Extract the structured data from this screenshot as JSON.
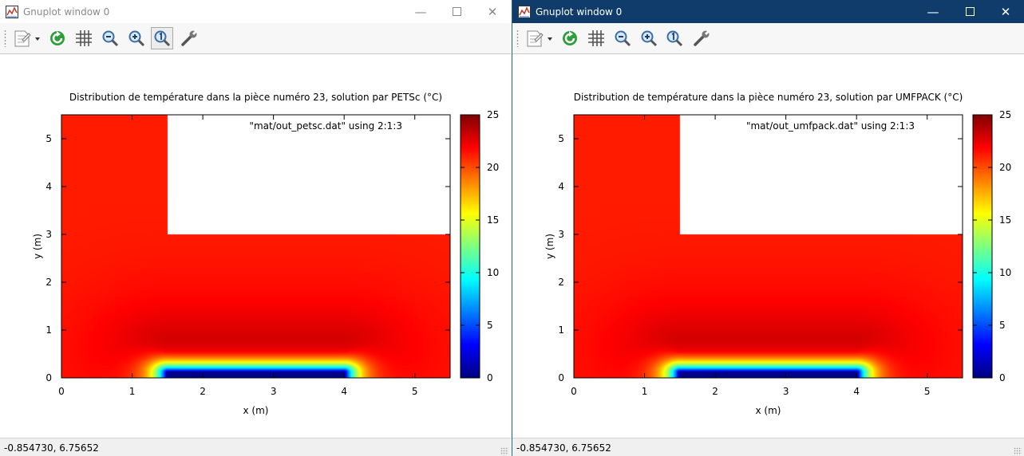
{
  "windows": [
    {
      "title": "Gnuplot window 0",
      "status": "-0.854730,  6.75652",
      "active": false,
      "plot": {
        "title": "Distribution de température dans la pièce numéro 23, solution par PETSc (°C)",
        "legend": "\"mat/out_petsc.dat\" using 2:1:3",
        "xlabel": "x (m)",
        "ylabel": "y (m)"
      }
    },
    {
      "title": "Gnuplot window 0",
      "status": "-0.854730,  6.75652",
      "active": true,
      "plot": {
        "title": "Distribution de température dans la pièce numéro 23, solution par UMFPACK (°C)",
        "legend": "\"mat/out_umfpack.dat\" using 2:1:3",
        "xlabel": "x (m)",
        "ylabel": "y (m)"
      }
    }
  ],
  "toolbar": [
    "copy-options-icon",
    "replot-icon",
    "grid-icon",
    "zoom-previous-icon",
    "zoom-next-icon",
    "autoscale-icon",
    "options-wrench-icon"
  ],
  "chart_data": {
    "type": "heatmap",
    "xlim": [
      0,
      5.5
    ],
    "ylim": [
      0,
      5.5
    ],
    "xticks": [
      "0",
      "1",
      "2",
      "3",
      "4",
      "5"
    ],
    "yticks": [
      "0",
      "1",
      "2",
      "3",
      "4",
      "5"
    ],
    "colorbar_ticks": [
      "0",
      "5",
      "10",
      "15",
      "20",
      "25"
    ],
    "colorbar_range": [
      0,
      25
    ],
    "domain_shape": "L-shaped: full width for y in [0,3], x in [0,1.5] for y in [3,5.5]"
  }
}
